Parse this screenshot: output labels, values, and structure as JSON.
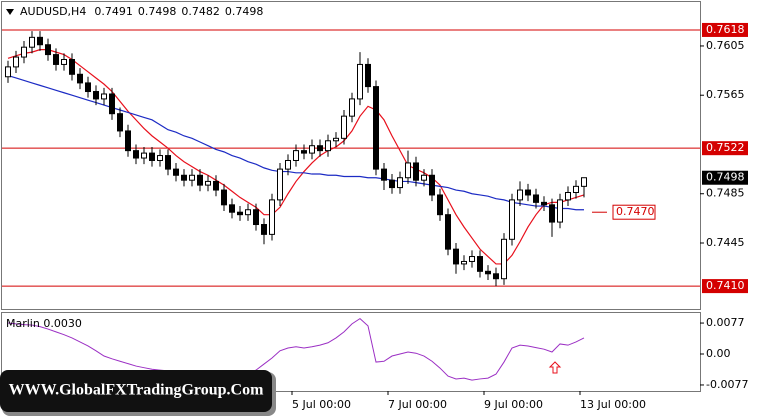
{
  "chart_data": {
    "type": "candlestick",
    "symbol": "AUDUSD,H4",
    "categories": [
      null,
      null,
      null,
      null,
      null,
      null,
      null,
      null,
      null,
      null,
      null,
      null,
      null,
      null,
      null,
      null,
      null,
      null,
      null,
      null,
      null,
      null,
      null,
      null,
      null,
      null,
      null,
      null,
      null,
      null,
      null,
      null,
      null,
      null,
      null,
      null,
      "5 Jul 00:00",
      null,
      null,
      null,
      null,
      null,
      null,
      null,
      null,
      null,
      null,
      null,
      "7 Jul 00:00",
      null,
      null,
      null,
      null,
      null,
      null,
      null,
      null,
      null,
      null,
      null,
      "9 Jul 00:00",
      null,
      null,
      null,
      null,
      null,
      null,
      null,
      null,
      null,
      null,
      null,
      "13 Jul 00:00"
    ],
    "open": [
      0.758,
      0.7588,
      0.7596,
      0.7604,
      0.7612,
      0.7606,
      0.7598,
      0.759,
      0.7594,
      0.7582,
      0.7575,
      0.7568,
      0.7562,
      0.7566,
      0.755,
      0.7536,
      0.752,
      0.7514,
      0.7518,
      0.7512,
      0.7516,
      0.7505,
      0.75,
      0.7496,
      0.75,
      0.7492,
      0.7495,
      0.7488,
      0.7476,
      0.747,
      0.7468,
      0.7472,
      0.746,
      0.7452,
      0.748,
      0.7505,
      0.7512,
      0.752,
      0.7518,
      0.7524,
      0.752,
      0.7528,
      0.753,
      0.7548,
      0.7562,
      0.759,
      0.7572,
      0.7505,
      0.7496,
      0.749,
      0.7498,
      0.751,
      0.7496,
      0.75,
      0.7484,
      0.7468,
      0.744,
      0.7428,
      0.743,
      0.7434,
      0.7422,
      0.742,
      0.7416,
      0.7448,
      0.748,
      0.7488,
      0.7484,
      0.7478,
      0.7476,
      0.7462,
      0.748,
      0.7486,
      0.7491
    ],
    "high": [
      0.7593,
      0.7601,
      0.7609,
      0.7617,
      0.7617,
      0.7611,
      0.7603,
      0.7599,
      0.7599,
      0.7587,
      0.758,
      0.7573,
      0.7571,
      0.7571,
      0.7555,
      0.7541,
      0.7525,
      0.7523,
      0.7523,
      0.7521,
      0.7521,
      0.751,
      0.7505,
      0.7505,
      0.7505,
      0.75,
      0.75,
      0.7493,
      0.7481,
      0.7475,
      0.7477,
      0.7477,
      0.7465,
      0.7485,
      0.751,
      0.7517,
      0.7525,
      0.7525,
      0.7529,
      0.7529,
      0.7533,
      0.7535,
      0.7553,
      0.7567,
      0.76,
      0.7595,
      0.7577,
      0.751,
      0.7501,
      0.7503,
      0.752,
      0.7515,
      0.7505,
      0.7505,
      0.7489,
      0.7473,
      0.7445,
      0.7435,
      0.7439,
      0.7439,
      0.7427,
      0.7425,
      0.7453,
      0.7485,
      0.7495,
      0.7493,
      0.7489,
      0.7483,
      0.7481,
      0.7485,
      0.7491,
      0.7496,
      0.7498
    ],
    "low": [
      0.7575,
      0.7583,
      0.7591,
      0.7599,
      0.7601,
      0.7593,
      0.7585,
      0.7585,
      0.7577,
      0.757,
      0.7563,
      0.7557,
      0.7557,
      0.7545,
      0.7531,
      0.7515,
      0.7509,
      0.7509,
      0.7507,
      0.7507,
      0.75,
      0.7495,
      0.7491,
      0.7491,
      0.7487,
      0.7487,
      0.7483,
      0.7471,
      0.7465,
      0.7463,
      0.7463,
      0.7455,
      0.7444,
      0.7447,
      0.7475,
      0.75,
      0.7507,
      0.7513,
      0.7513,
      0.7515,
      0.7515,
      0.7523,
      0.7525,
      0.7543,
      0.7557,
      0.7567,
      0.75,
      0.7488,
      0.7485,
      0.7485,
      0.7493,
      0.7491,
      0.7491,
      0.7479,
      0.7463,
      0.7435,
      0.742,
      0.7423,
      0.7425,
      0.7417,
      0.7415,
      0.741,
      0.7411,
      0.7443,
      0.7475,
      0.7479,
      0.7473,
      0.7471,
      0.745,
      0.7457,
      0.7475,
      0.7481,
      0.7482
    ],
    "close": [
      0.7588,
      0.7596,
      0.7604,
      0.7612,
      0.7606,
      0.7598,
      0.759,
      0.7594,
      0.7582,
      0.7575,
      0.7568,
      0.7562,
      0.7566,
      0.755,
      0.7536,
      0.752,
      0.7514,
      0.7518,
      0.7512,
      0.7516,
      0.7505,
      0.75,
      0.7496,
      0.75,
      0.7492,
      0.7495,
      0.7488,
      0.7476,
      0.747,
      0.7468,
      0.7472,
      0.746,
      0.7452,
      0.748,
      0.7505,
      0.7512,
      0.752,
      0.7518,
      0.7524,
      0.752,
      0.7528,
      0.753,
      0.7548,
      0.7562,
      0.759,
      0.7572,
      0.7505,
      0.7496,
      0.749,
      0.7498,
      0.751,
      0.7496,
      0.75,
      0.7484,
      0.7468,
      0.744,
      0.7428,
      0.743,
      0.7434,
      0.7422,
      0.742,
      0.7416,
      0.7448,
      0.748,
      0.7488,
      0.7484,
      0.7478,
      0.7476,
      0.7462,
      0.748,
      0.7486,
      0.7491,
      0.7498
    ],
    "up_color": "#ffffff",
    "down_color": "#000000",
    "wick_color": "#000000",
    "series": [
      {
        "color": "#e8101c",
        "values": [
          0.7595,
          0.7597,
          0.7599,
          0.76,
          0.7602,
          0.7602,
          0.76,
          0.7598,
          0.7594,
          0.7589,
          0.7584,
          0.7579,
          0.7574,
          0.7568,
          0.756,
          0.7552,
          0.7545,
          0.7538,
          0.7532,
          0.7527,
          0.7522,
          0.7516,
          0.7511,
          0.7507,
          0.7503,
          0.75,
          0.7496,
          0.7492,
          0.7487,
          0.7482,
          0.7478,
          0.7474,
          0.7468,
          0.7468,
          0.7474,
          0.7485,
          0.7495,
          0.7503,
          0.751,
          0.7516,
          0.752,
          0.7523,
          0.7528,
          0.7536,
          0.7548,
          0.7556,
          0.7553,
          0.7545,
          0.7532,
          0.752,
          0.7508,
          0.7505,
          0.7502,
          0.7498,
          0.7492,
          0.748,
          0.7468,
          0.7458,
          0.7449,
          0.744,
          0.7434,
          0.7428,
          0.7428,
          0.7435,
          0.7446,
          0.7458,
          0.7468,
          0.7476,
          0.7478,
          0.7478,
          0.748,
          0.7482,
          0.7484
        ]
      },
      {
        "color": "#1c2bc4",
        "values": [
          0.7581,
          0.7579,
          0.7577,
          0.7575,
          0.7573,
          0.7571,
          0.7569,
          0.7567,
          0.7565,
          0.7563,
          0.7561,
          0.7559,
          0.7557,
          0.7555,
          0.7553,
          0.7551,
          0.7549,
          0.7547,
          0.7545,
          0.7541,
          0.7537,
          0.7535,
          0.7532,
          0.753,
          0.7527,
          0.7524,
          0.7521,
          0.7519,
          0.7516,
          0.7514,
          0.7511,
          0.7509,
          0.7506,
          0.7504,
          0.7503,
          0.7503,
          0.7502,
          0.7502,
          0.7501,
          0.7501,
          0.75,
          0.75,
          0.7499,
          0.7499,
          0.7499,
          0.7498,
          0.7498,
          0.7497,
          0.7496,
          0.7495,
          0.7495,
          0.7494,
          0.7493,
          0.7492,
          0.7491,
          0.749,
          0.7488,
          0.7487,
          0.7485,
          0.7484,
          0.7483,
          0.7481,
          0.748,
          0.7478,
          0.7477,
          0.7476,
          0.7475,
          0.7475,
          0.7474,
          0.7473,
          0.7473,
          0.7472,
          0.7472
        ]
      }
    ],
    "ylim": [
      0.73914,
      0.76407
    ],
    "yticks": [
      0.7605,
      0.7565,
      0.7485,
      0.7445
    ],
    "levels": [
      0.7618,
      0.7522,
      {
        "value": 0.741,
        "label": "0.7410"
      }
    ],
    "level_color": "#d40000",
    "annotation": {
      "value": 0.747,
      "label": "0.7470"
    },
    "indicator": {
      "name": "Marlin 0.0030",
      "color": "#9b2fc4",
      "values": [
        0.0077,
        0.0075,
        0.0073,
        0.0072,
        0.0068,
        0.0062,
        0.0055,
        0.0048,
        0.004,
        0.003,
        0.002,
        0.0008,
        -0.0005,
        -0.0012,
        -0.0018,
        -0.0024,
        -0.003,
        -0.0034,
        -0.0038,
        -0.004,
        -0.0042,
        -0.0045,
        -0.0048,
        -0.005,
        -0.0052,
        -0.0054,
        -0.0056,
        -0.0058,
        -0.0058,
        -0.0056,
        -0.005,
        -0.004,
        -0.0025,
        -0.001,
        0.0008,
        0.0015,
        0.0018,
        0.0015,
        0.0018,
        0.0022,
        0.0028,
        0.004,
        0.0055,
        0.0075,
        0.0088,
        0.007,
        -0.002,
        -0.0018,
        -0.0005,
        0.0,
        0.0005,
        0.0002,
        -0.0005,
        -0.0018,
        -0.0035,
        -0.0055,
        -0.0062,
        -0.006,
        -0.0065,
        -0.0062,
        -0.006,
        -0.005,
        -0.002,
        0.0015,
        0.0022,
        0.002,
        0.0016,
        0.0012,
        0.0005,
        0.0025,
        0.0022,
        0.003,
        0.004
      ],
      "ylim": [
        -0.0092,
        0.0102
      ],
      "yticks": [
        0.0077,
        {
          "value": 0,
          "label": "0.00"
        },
        -0.0077
      ]
    },
    "watermark": "WWW.GlobalFXTradingGroup.Com"
  }
}
